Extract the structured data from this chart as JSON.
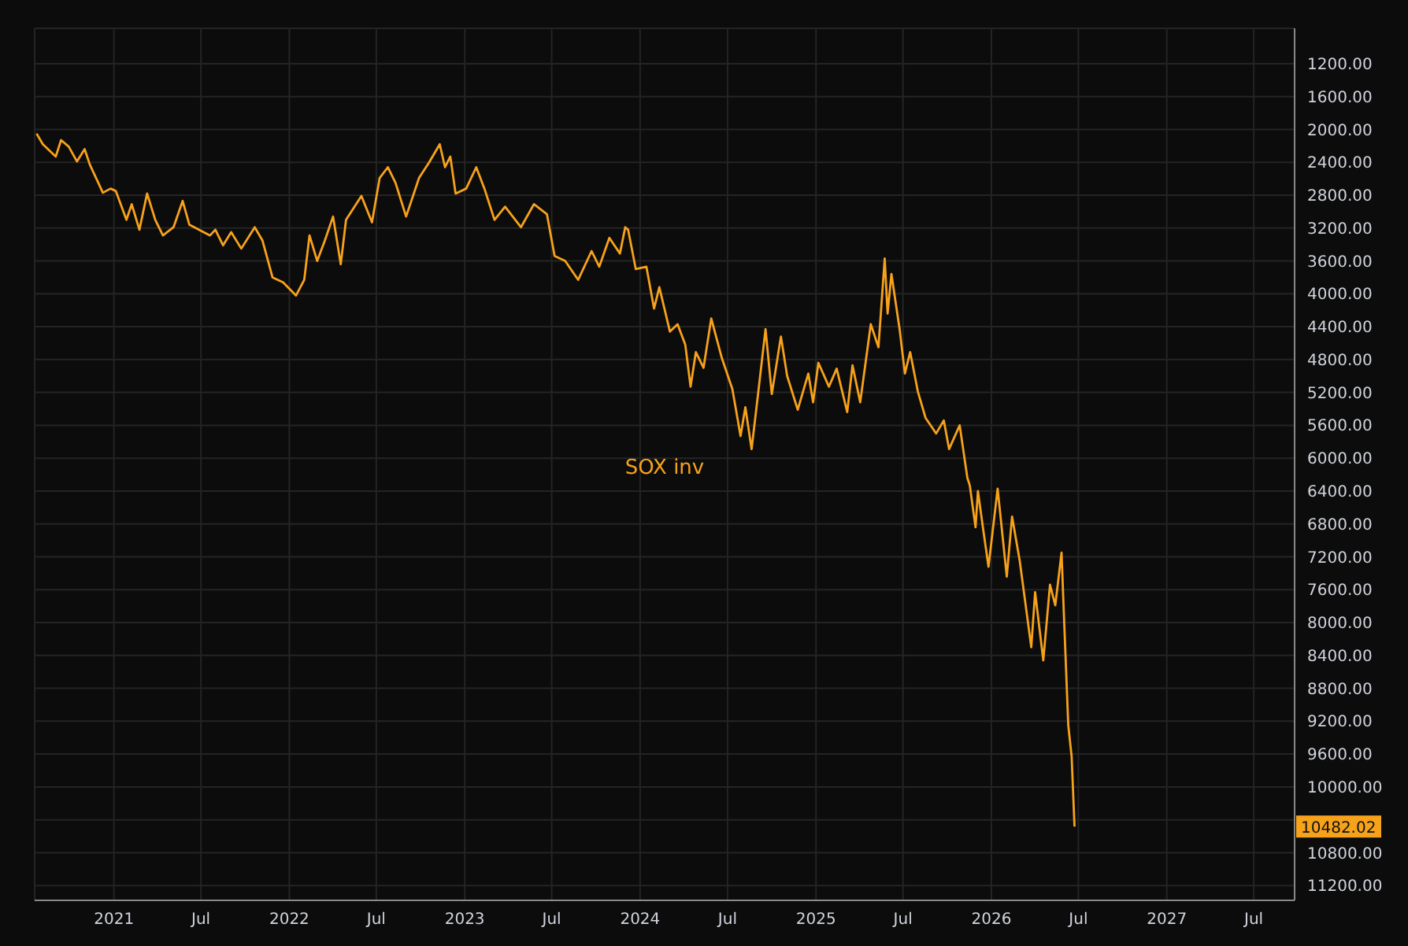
{
  "chart_data": {
    "type": "line",
    "xlim": [
      "2020-07-20",
      "2027-09-24"
    ],
    "ylim": [
      11380,
      770
    ],
    "xticks": [
      {
        "value": "2021-01-01",
        "label": "2021"
      },
      {
        "value": "2021-07-01",
        "label": "Jul"
      },
      {
        "value": "2022-01-01",
        "label": "2022"
      },
      {
        "value": "2022-07-01",
        "label": "Jul"
      },
      {
        "value": "2023-01-01",
        "label": "2023"
      },
      {
        "value": "2023-07-01",
        "label": "Jul"
      },
      {
        "value": "2024-01-01",
        "label": "2024"
      },
      {
        "value": "2024-07-01",
        "label": "Jul"
      },
      {
        "value": "2025-01-01",
        "label": "2025"
      },
      {
        "value": "2025-07-01",
        "label": "Jul"
      },
      {
        "value": "2026-01-01",
        "label": "2026"
      },
      {
        "value": "2026-07-01",
        "label": "Jul"
      },
      {
        "value": "2027-01-01",
        "label": "2027"
      },
      {
        "value": "2027-07-01",
        "label": "Jul"
      }
    ],
    "yticks": [
      {
        "value": 1200,
        "label": "1200.00"
      },
      {
        "value": 1600,
        "label": "1600.00"
      },
      {
        "value": 2000,
        "label": "2000.00"
      },
      {
        "value": 2400,
        "label": "2400.00"
      },
      {
        "value": 2800,
        "label": "2800.00"
      },
      {
        "value": 3200,
        "label": "3200.00"
      },
      {
        "value": 3600,
        "label": "3600.00"
      },
      {
        "value": 4000,
        "label": "4000.00"
      },
      {
        "value": 4400,
        "label": "4400.00"
      },
      {
        "value": 4800,
        "label": "4800.00"
      },
      {
        "value": 5200,
        "label": "5200.00"
      },
      {
        "value": 5600,
        "label": "5600.00"
      },
      {
        "value": 6000,
        "label": "6000.00"
      },
      {
        "value": 6400,
        "label": "6400.00"
      },
      {
        "value": 6800,
        "label": "6800.00"
      },
      {
        "value": 7200,
        "label": "7200.00"
      },
      {
        "value": 7600,
        "label": "7600.00"
      },
      {
        "value": 8000,
        "label": "8000.00"
      },
      {
        "value": 8400,
        "label": "8400.00"
      },
      {
        "value": 8800,
        "label": "8800.00"
      },
      {
        "value": 9200,
        "label": "9200.00"
      },
      {
        "value": 9600,
        "label": "9600.00"
      },
      {
        "value": 10000,
        "label": "10000.00"
      },
      {
        "value": 10400,
        "label": null
      },
      {
        "value": 10800,
        "label": "10800.00"
      },
      {
        "value": 11200,
        "label": "11200.00"
      }
    ],
    "grid": true,
    "marker": "none",
    "line_style": "solid",
    "annotations": [
      "10482.02"
    ],
    "series": [
      {
        "name": "SOX inv",
        "color": "#f7a21b",
        "x": [
          "2020-07-24",
          "2020-08-06",
          "2020-09-02",
          "2020-09-13",
          "2020-09-29",
          "2020-10-16",
          "2020-11-01",
          "2020-11-12",
          "2020-12-09",
          "2020-12-25",
          "2021-01-05",
          "2021-01-27",
          "2021-02-07",
          "2021-02-23",
          "2021-03-11",
          "2021-03-28",
          "2021-04-13",
          "2021-05-05",
          "2021-05-24",
          "2021-06-07",
          "2021-07-20",
          "2021-07-31",
          "2021-08-16",
          "2021-09-02",
          "2021-09-23",
          "2021-10-21",
          "2021-11-06",
          "2021-11-27",
          "2021-12-19",
          "2022-01-15",
          "2022-02-01",
          "2022-02-12",
          "2022-02-28",
          "2022-03-16",
          "2022-04-02",
          "2022-04-18",
          "2022-04-29",
          "2022-05-31",
          "2022-06-22",
          "2022-07-08",
          "2022-07-25",
          "2022-08-10",
          "2022-09-01",
          "2022-09-28",
          "2022-10-19",
          "2022-11-10",
          "2022-11-21",
          "2022-12-02",
          "2022-12-13",
          "2023-01-04",
          "2023-01-25",
          "2023-02-11",
          "2023-03-04",
          "2023-03-26",
          "2023-04-28",
          "2023-05-25",
          "2023-06-21",
          "2023-07-07",
          "2023-07-29",
          "2023-08-25",
          "2023-09-22",
          "2023-10-08",
          "2023-10-29",
          "2023-11-20",
          "2023-12-01",
          "2023-12-07",
          "2023-12-23",
          "2024-01-14",
          "2024-01-30",
          "2024-02-10",
          "2024-03-03",
          "2024-03-19",
          "2024-04-04",
          "2024-04-15",
          "2024-04-26",
          "2024-05-12",
          "2024-05-28",
          "2024-06-19",
          "2024-07-11",
          "2024-07-28",
          "2024-08-07",
          "2024-08-20",
          "2024-09-03",
          "2024-09-18",
          "2024-10-01",
          "2024-10-20",
          "2024-11-02",
          "2024-11-24",
          "2024-12-16",
          "2024-12-26",
          "2025-01-06",
          "2025-01-28",
          "2025-02-13",
          "2025-03-07",
          "2025-03-18",
          "2025-04-03",
          "2025-04-25",
          "2025-05-11",
          "2025-05-24",
          "2025-05-30",
          "2025-06-07",
          "2025-06-24",
          "2025-07-05",
          "2025-07-16",
          "2025-08-01",
          "2025-08-17",
          "2025-09-08",
          "2025-09-24",
          "2025-10-05",
          "2025-10-27",
          "2025-11-12",
          "2025-11-17",
          "2025-11-29",
          "2025-12-04",
          "2025-12-15",
          "2025-12-26",
          "2026-01-14",
          "2026-02-02",
          "2026-02-13",
          "2026-03-01",
          "2026-03-25",
          "2026-04-02",
          "2026-04-19",
          "2026-05-03",
          "2026-05-14",
          "2026-05-27",
          "2026-06-01",
          "2026-06-10",
          "2026-06-17",
          "2026-06-23"
        ],
        "values": [
          2050,
          2180,
          2330,
          2130,
          2210,
          2390,
          2240,
          2430,
          2770,
          2720,
          2750,
          3100,
          2910,
          3220,
          2780,
          3100,
          3290,
          3190,
          2870,
          3160,
          3290,
          3220,
          3410,
          3250,
          3450,
          3190,
          3350,
          3800,
          3860,
          4020,
          3830,
          3290,
          3600,
          3350,
          3060,
          3640,
          3100,
          2810,
          3130,
          2590,
          2460,
          2650,
          3060,
          2590,
          2400,
          2180,
          2460,
          2330,
          2780,
          2720,
          2460,
          2720,
          3100,
          2940,
          3190,
          2910,
          3030,
          3540,
          3600,
          3830,
          3480,
          3670,
          3320,
          3510,
          3190,
          3220,
          3700,
          3670,
          4180,
          3920,
          4460,
          4370,
          4620,
          5130,
          4710,
          4900,
          4300,
          4780,
          5160,
          5730,
          5380,
          5890,
          5190,
          4430,
          5220,
          4520,
          5000,
          5410,
          4970,
          5320,
          4840,
          5130,
          4910,
          5440,
          4870,
          5320,
          4370,
          4650,
          3570,
          4240,
          3760,
          4430,
          4970,
          4710,
          5190,
          5510,
          5700,
          5540,
          5890,
          5600,
          6240,
          6330,
          6840,
          6400,
          6870,
          7320,
          6370,
          7440,
          6710,
          7250,
          8300,
          7630,
          8460,
          7540,
          7790,
          7150,
          7920,
          9250,
          9630,
          10482.02
        ]
      }
    ]
  }
}
